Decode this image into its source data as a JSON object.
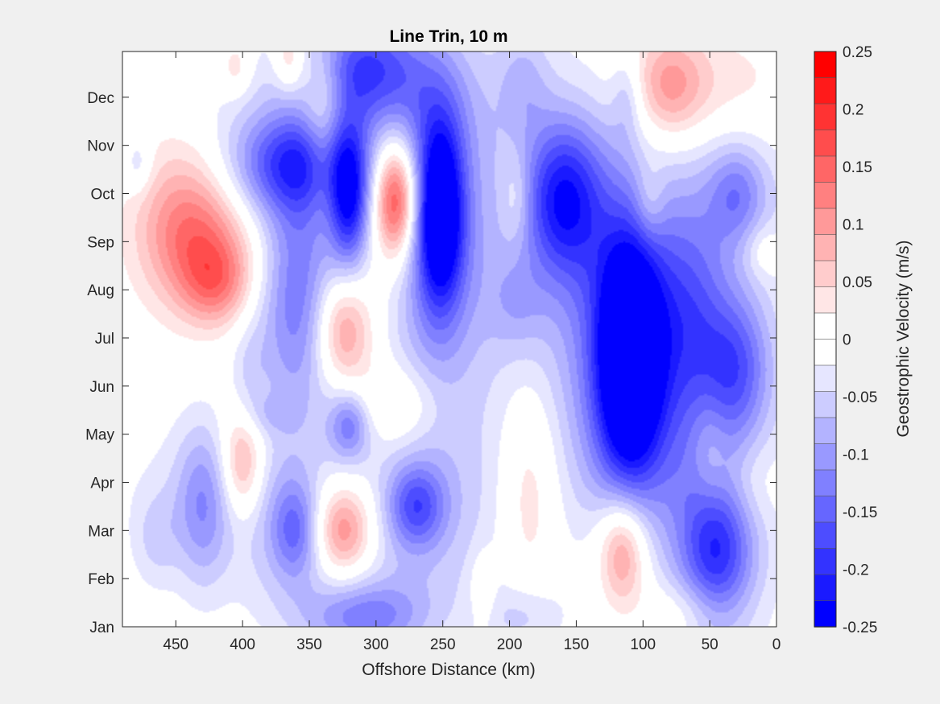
{
  "chart_data": {
    "type": "heatmap",
    "subtype": "filled-contour",
    "title": "Line Trin, 10 m",
    "xlabel": "Offshore Distance (km)",
    "ylabel": "",
    "xlim": [
      490,
      0
    ],
    "x_reversed": true,
    "xticks": [
      "450",
      "400",
      "350",
      "300",
      "250",
      "200",
      "150",
      "100",
      "50",
      "0"
    ],
    "xtick_values": [
      450,
      400,
      350,
      300,
      250,
      200,
      150,
      100,
      50,
      0
    ],
    "ylim": [
      1,
      12.95
    ],
    "yticks": [
      "Jan",
      "Feb",
      "Mar",
      "Apr",
      "May",
      "Jun",
      "Jul",
      "Aug",
      "Sep",
      "Oct",
      "Nov",
      "Dec"
    ],
    "ytick_values": [
      1,
      2,
      3,
      4,
      5,
      6,
      7,
      8,
      9,
      10,
      11,
      12
    ],
    "colorbar": {
      "label": "Geostrophic Velocity (m/s)",
      "clim": [
        -0.25,
        0.25
      ],
      "ticks": [
        "0.25",
        "0.2",
        "0.15",
        "0.1",
        "0.05",
        "0",
        "-0.05",
        "-0.1",
        "-0.15",
        "-0.2",
        "-0.25"
      ],
      "colors": [
        "#ff0000",
        "#ff1a1a",
        "#ff3333",
        "#ff4d4d",
        "#ff6666",
        "#ff8080",
        "#ff9999",
        "#ffb3b3",
        "#ffcccc",
        "#ffe6e6",
        "#ffffff",
        "#ffffff",
        "#e6e6ff",
        "#ccccff",
        "#b3b3ff",
        "#9999ff",
        "#8080ff",
        "#6666ff",
        "#4d4dff",
        "#3333ff",
        "#1a1aff",
        "#0000ff"
      ]
    },
    "features": [
      {
        "x": 440,
        "y": 9.45,
        "sx": 28,
        "sy": 1.2,
        "v": 0.12,
        "rot": -30
      },
      {
        "x": 420,
        "y": 8.1,
        "sx": 18,
        "sy": 0.6,
        "v": 0.09,
        "rot": -30
      },
      {
        "x": 420,
        "y": 8.9,
        "sx": 30,
        "sy": 0.8,
        "v": 0.06,
        "rot": -30
      },
      {
        "x": 478,
        "y": 10.6,
        "sx": 7,
        "sy": 0.4,
        "v": -0.05
      },
      {
        "x": 360,
        "y": 10.6,
        "sx": 30,
        "sy": 0.7,
        "v": -0.13
      },
      {
        "x": 385,
        "y": 10.5,
        "sx": 45,
        "sy": 1.4,
        "v": -0.06
      },
      {
        "x": 360,
        "y": 7.4,
        "sx": 22,
        "sy": 1.6,
        "v": -0.09
      },
      {
        "x": 355,
        "y": 8.6,
        "sx": 18,
        "sy": 2.0,
        "v": -0.05
      },
      {
        "x": 395,
        "y": 6.2,
        "sx": 10,
        "sy": 0.8,
        "v": -0.04
      },
      {
        "x": 340,
        "y": 12.2,
        "sx": 14,
        "sy": 0.8,
        "v": 0.07
      },
      {
        "x": 365,
        "y": 12.8,
        "sx": 8,
        "sy": 0.5,
        "v": 0.08
      },
      {
        "x": 340,
        "y": 10.8,
        "sx": 9,
        "sy": 1.0,
        "v": 0.05
      },
      {
        "x": 310,
        "y": 12.7,
        "sx": 30,
        "sy": 0.8,
        "v": -0.12
      },
      {
        "x": 310,
        "y": 12.2,
        "sx": 40,
        "sy": 1.0,
        "v": -0.06
      },
      {
        "x": 405,
        "y": 12.6,
        "sx": 8,
        "sy": 0.4,
        "v": 0.05
      },
      {
        "x": 320,
        "y": 9.9,
        "sx": 10,
        "sy": 1.0,
        "v": -0.15
      },
      {
        "x": 318,
        "y": 9.8,
        "sx": 16,
        "sy": 1.4,
        "v": -0.06
      },
      {
        "x": 285,
        "y": 9.85,
        "sx": 11,
        "sy": 0.8,
        "v": 0.17
      },
      {
        "x": 285,
        "y": 9.85,
        "sx": 20,
        "sy": 1.3,
        "v": 0.07
      },
      {
        "x": 252,
        "y": 9.6,
        "sx": 12,
        "sy": 1.3,
        "v": -0.22
      },
      {
        "x": 258,
        "y": 9.3,
        "sx": 25,
        "sy": 2.2,
        "v": -0.1
      },
      {
        "x": 240,
        "y": 8.6,
        "sx": 40,
        "sy": 3.5,
        "v": -0.04
      },
      {
        "x": 255,
        "y": 11.8,
        "sx": 30,
        "sy": 1.0,
        "v": -0.03
      },
      {
        "x": 325,
        "y": 7.2,
        "sx": 14,
        "sy": 0.8,
        "v": 0.08
      },
      {
        "x": 325,
        "y": 7.15,
        "sx": 20,
        "sy": 1.2,
        "v": 0.05
      },
      {
        "x": 285,
        "y": 5.6,
        "sx": 22,
        "sy": 0.6,
        "v": 0.06
      },
      {
        "x": 320,
        "y": 5.2,
        "sx": 10,
        "sy": 0.5,
        "v": -0.09
      },
      {
        "x": 320,
        "y": 5.2,
        "sx": 18,
        "sy": 0.8,
        "v": -0.04
      },
      {
        "x": 380,
        "y": 5.4,
        "sx": 12,
        "sy": 0.3,
        "v": -0.03
      },
      {
        "x": 400,
        "y": 4.4,
        "sx": 10,
        "sy": 0.7,
        "v": 0.07
      },
      {
        "x": 400,
        "y": 4.3,
        "sx": 14,
        "sy": 1.0,
        "v": 0.05
      },
      {
        "x": 430,
        "y": 3.5,
        "sx": 14,
        "sy": 1.2,
        "v": -0.08
      },
      {
        "x": 415,
        "y": 3.7,
        "sx": 50,
        "sy": 1.2,
        "v": -0.04
      },
      {
        "x": 465,
        "y": 2.8,
        "sx": 12,
        "sy": 0.7,
        "v": -0.04
      },
      {
        "x": 360,
        "y": 3.0,
        "sx": 12,
        "sy": 0.7,
        "v": -0.09
      },
      {
        "x": 365,
        "y": 3.0,
        "sx": 28,
        "sy": 1.2,
        "v": -0.05
      },
      {
        "x": 325,
        "y": 3.0,
        "sx": 14,
        "sy": 0.6,
        "v": 0.09
      },
      {
        "x": 325,
        "y": 3.0,
        "sx": 22,
        "sy": 1.0,
        "v": 0.06
      },
      {
        "x": 270,
        "y": 3.5,
        "sx": 15,
        "sy": 0.6,
        "v": -0.12
      },
      {
        "x": 265,
        "y": 3.4,
        "sx": 40,
        "sy": 1.4,
        "v": -0.05
      },
      {
        "x": 310,
        "y": 1.2,
        "sx": 30,
        "sy": 0.5,
        "v": -0.09
      },
      {
        "x": 305,
        "y": 1.4,
        "sx": 45,
        "sy": 0.9,
        "v": -0.04
      },
      {
        "x": 220,
        "y": 1.8,
        "sx": 6,
        "sy": 0.5,
        "v": 0.05
      },
      {
        "x": 190,
        "y": 1.2,
        "sx": 20,
        "sy": 0.5,
        "v": -0.05
      },
      {
        "x": 185,
        "y": 3.9,
        "sx": 16,
        "sy": 1.6,
        "v": 0.06
      },
      {
        "x": 190,
        "y": 12.4,
        "sx": 14,
        "sy": 0.8,
        "v": -0.05
      },
      {
        "x": 195,
        "y": 9.9,
        "sx": 8,
        "sy": 0.7,
        "v": 0.05
      },
      {
        "x": 195,
        "y": 7.7,
        "sx": 15,
        "sy": 0.7,
        "v": -0.04
      },
      {
        "x": 160,
        "y": 9.9,
        "sx": 20,
        "sy": 1.1,
        "v": -0.15
      },
      {
        "x": 155,
        "y": 9.9,
        "sx": 35,
        "sy": 1.9,
        "v": -0.06
      },
      {
        "x": 110,
        "y": 6.6,
        "sx": 16,
        "sy": 1.7,
        "v": -0.24
      },
      {
        "x": 110,
        "y": 6.5,
        "sx": 30,
        "sy": 2.5,
        "v": -0.12
      },
      {
        "x": 105,
        "y": 6.2,
        "sx": 65,
        "sy": 2.9,
        "v": -0.05
      },
      {
        "x": 65,
        "y": 7.7,
        "sx": 20,
        "sy": 1.6,
        "v": -0.08
      },
      {
        "x": 30,
        "y": 6.4,
        "sx": 18,
        "sy": 1.0,
        "v": -0.1
      },
      {
        "x": 40,
        "y": 6.5,
        "sx": 30,
        "sy": 2.2,
        "v": -0.04
      },
      {
        "x": 50,
        "y": 4.6,
        "sx": 10,
        "sy": 0.9,
        "v": 0.05
      },
      {
        "x": 80,
        "y": 12.2,
        "sx": 18,
        "sy": 0.8,
        "v": 0.08
      },
      {
        "x": 60,
        "y": 12.3,
        "sx": 50,
        "sy": 0.8,
        "v": 0.04
      },
      {
        "x": 112,
        "y": 12.0,
        "sx": 8,
        "sy": 0.6,
        "v": -0.05
      },
      {
        "x": 95,
        "y": 9.8,
        "sx": 8,
        "sy": 0.6,
        "v": 0.05
      },
      {
        "x": 30,
        "y": 10.0,
        "sx": 14,
        "sy": 0.7,
        "v": -0.07
      },
      {
        "x": 25,
        "y": 10.0,
        "sx": 30,
        "sy": 0.9,
        "v": -0.04
      },
      {
        "x": 25,
        "y": 4.0,
        "sx": 20,
        "sy": 0.7,
        "v": 0.05
      },
      {
        "x": 45,
        "y": 2.6,
        "sx": 18,
        "sy": 1.2,
        "v": -0.13
      },
      {
        "x": 45,
        "y": 2.8,
        "sx": 30,
        "sy": 1.8,
        "v": -0.06
      },
      {
        "x": 115,
        "y": 2.6,
        "sx": 12,
        "sy": 0.8,
        "v": 0.1
      },
      {
        "x": 115,
        "y": 2.6,
        "sx": 20,
        "sy": 1.0,
        "v": 0.05
      },
      {
        "x": 65,
        "y": 1.3,
        "sx": 25,
        "sy": 0.5,
        "v": 0.05
      },
      {
        "x": 10,
        "y": 8.8,
        "sx": 10,
        "sy": 0.4,
        "v": 0.04
      }
    ]
  }
}
